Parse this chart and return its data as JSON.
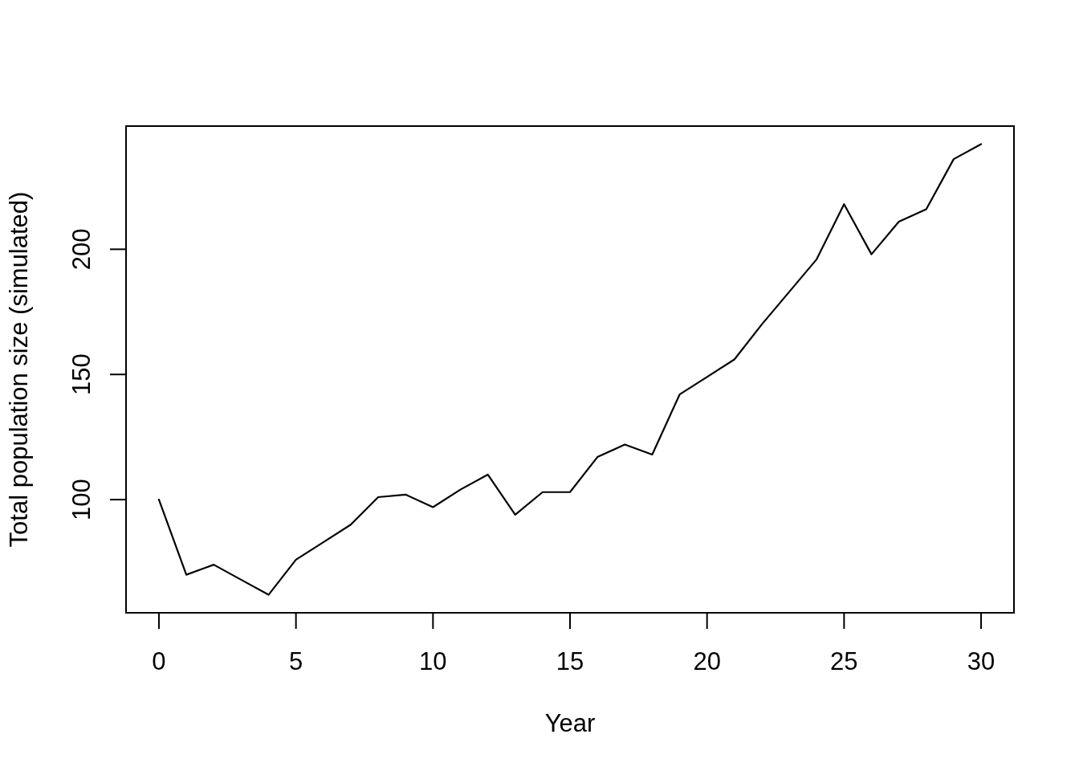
{
  "chart_data": {
    "type": "line",
    "xlabel": "Year",
    "ylabel": "Total population size (simulated)",
    "x": [
      0,
      1,
      2,
      3,
      4,
      5,
      6,
      7,
      8,
      9,
      10,
      11,
      12,
      13,
      14,
      15,
      16,
      17,
      18,
      19,
      20,
      21,
      22,
      23,
      24,
      25,
      26,
      27,
      28,
      29,
      30
    ],
    "values": [
      100,
      70,
      74,
      68,
      62,
      76,
      83,
      90,
      101,
      102,
      97,
      104,
      110,
      94,
      103,
      103,
      117,
      122,
      118,
      142,
      149,
      156,
      170,
      183,
      196,
      218,
      198,
      211,
      216,
      236,
      242
    ],
    "color": "#000000",
    "xlim": [
      -1.2,
      31.2
    ],
    "ylim": [
      54.8,
      249.2
    ],
    "xticks": [
      0,
      5,
      10,
      15,
      20,
      25,
      30
    ],
    "yticks": [
      100,
      150,
      200
    ]
  }
}
